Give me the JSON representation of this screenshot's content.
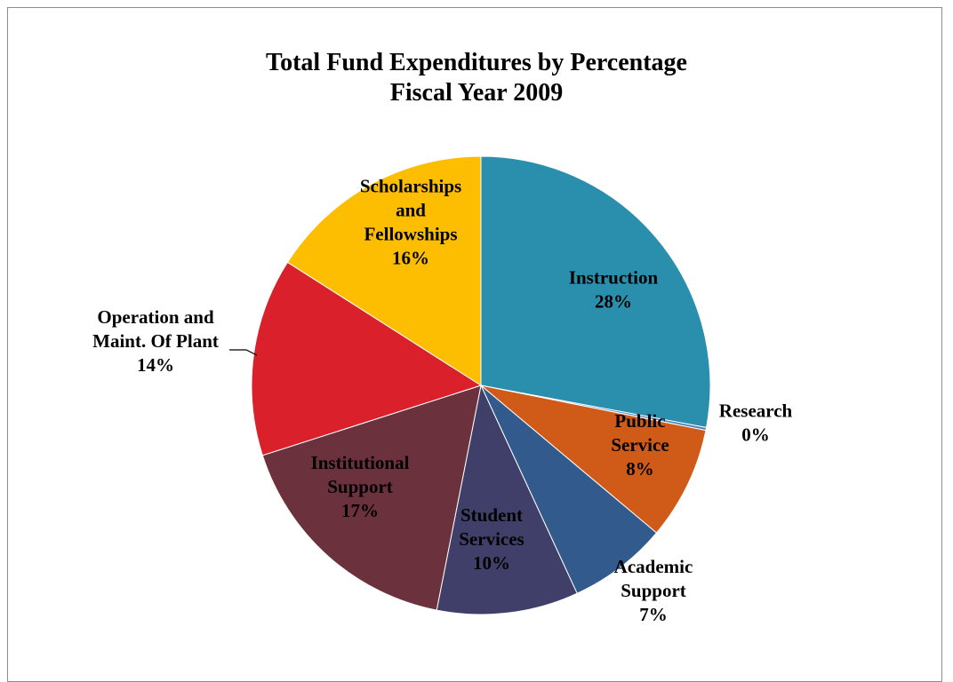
{
  "chart_data": {
    "type": "pie",
    "title": "Total Fund Expenditures by Percentage",
    "subtitle": "Fiscal Year 2009",
    "slices": [
      {
        "label": "Instruction",
        "value": 28,
        "value_label": "28%",
        "color": "#2a8fad"
      },
      {
        "label": "Research",
        "value": 0.2,
        "value_label": "0%",
        "color": "#4f81bd"
      },
      {
        "label": "Public Service",
        "value": 8,
        "value_label": "8%",
        "color": "#d05a17"
      },
      {
        "label": "Academic Support",
        "value": 7,
        "value_label": "7%",
        "color": "#335a8c"
      },
      {
        "label": "Student Services",
        "value": 10,
        "value_label": "10%",
        "color": "#3f3f69"
      },
      {
        "label": "Institutional Support",
        "value": 17,
        "value_label": "17%",
        "color": "#6b323e"
      },
      {
        "label": "Operation and Maint. Of Plant",
        "value": 14,
        "value_label": "14%",
        "color": "#d9202b"
      },
      {
        "label": "Scholarships and Fellowships",
        "value": 16,
        "value_label": "16%",
        "color": "#fdbd00"
      }
    ],
    "label_lines": [
      [
        "Instruction",
        "28%"
      ],
      [
        "Research",
        "0%"
      ],
      [
        "Public",
        "Service",
        "8%"
      ],
      [
        "Academic",
        "Support",
        "7%"
      ],
      [
        "Student",
        "Services",
        "10%"
      ],
      [
        "Institutional",
        "Support",
        "17%"
      ],
      [
        "Operation and",
        "Maint. Of Plant",
        "14%"
      ],
      [
        "Scholarships",
        "and",
        "Fellowships",
        "16%"
      ]
    ]
  }
}
